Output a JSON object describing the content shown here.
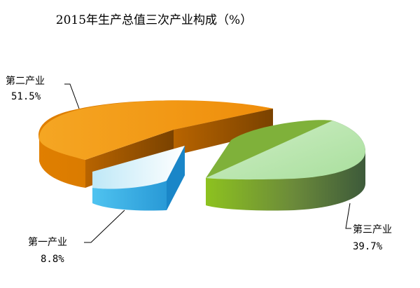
{
  "chart_data": {
    "type": "pie",
    "title": "2015年生产总值三次产业构成（%）",
    "slices": [
      {
        "label": "第一产业",
        "value": 8.8,
        "value_label": "8.8%",
        "color": "#3fb4e6"
      },
      {
        "label": "第二产业",
        "value": 51.5,
        "value_label": "51.5%",
        "color": "#f29a1f"
      },
      {
        "label": "第三产业",
        "value": 39.7,
        "value_label": "39.7%",
        "color": "#8cc63f"
      }
    ],
    "legend": "none",
    "style": "3d-exploded"
  }
}
